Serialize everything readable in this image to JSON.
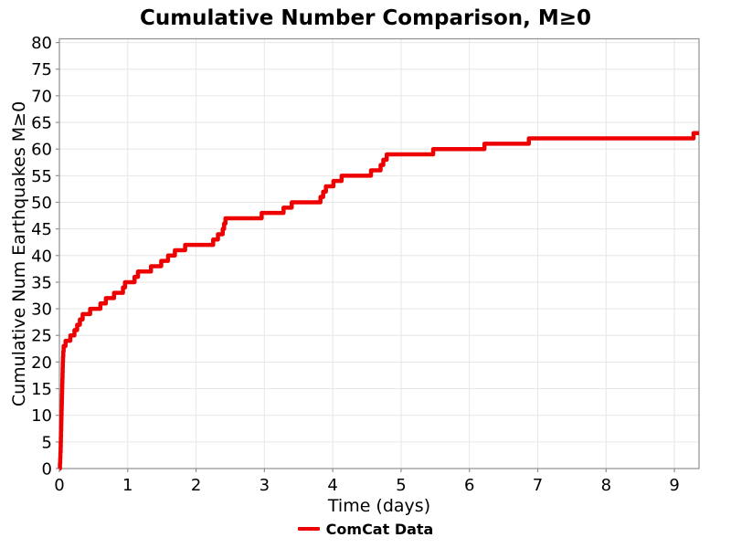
{
  "title": "Cumulative Number Comparison, M≥0",
  "chart_data": {
    "type": "line",
    "subtype": "cumulative-step",
    "title": "Cumulative Number Comparison, M≥0",
    "xlabel": "Time (days)",
    "ylabel": "Cumulative Num Earthquakes M≥0",
    "xlim": [
      0,
      9.36
    ],
    "ylim": [
      0,
      80.7
    ],
    "xticks": [
      0,
      1,
      2,
      3,
      4,
      5,
      6,
      7,
      8,
      9
    ],
    "yticks": [
      0,
      5,
      10,
      15,
      20,
      25,
      30,
      35,
      40,
      45,
      50,
      55,
      60,
      65,
      70,
      75,
      80
    ],
    "grid": true,
    "grid_color": "#e6e6e6",
    "spine_color": "#8f8f8f",
    "legend": {
      "position": "bottom-center",
      "entries": [
        {
          "label": "ComCat Data",
          "color": "#ee0000"
        }
      ]
    },
    "series": [
      {
        "name": "ComCat Data",
        "color": "#ee0000",
        "line_width": 4.5,
        "start_time": 0.005,
        "end_time": 9.36,
        "steps": [
          [
            0.008,
            1
          ],
          [
            0.012,
            2
          ],
          [
            0.015,
            3
          ],
          [
            0.018,
            4
          ],
          [
            0.02,
            5
          ],
          [
            0.022,
            6
          ],
          [
            0.024,
            7
          ],
          [
            0.026,
            8
          ],
          [
            0.028,
            9
          ],
          [
            0.03,
            10
          ],
          [
            0.032,
            11
          ],
          [
            0.034,
            12
          ],
          [
            0.036,
            13
          ],
          [
            0.038,
            14
          ],
          [
            0.04,
            15
          ],
          [
            0.042,
            16
          ],
          [
            0.044,
            17
          ],
          [
            0.046,
            18
          ],
          [
            0.048,
            19
          ],
          [
            0.05,
            20
          ],
          [
            0.053,
            21
          ],
          [
            0.057,
            22
          ],
          [
            0.062,
            23
          ],
          [
            0.09,
            24
          ],
          [
            0.16,
            25
          ],
          [
            0.22,
            26
          ],
          [
            0.26,
            27
          ],
          [
            0.3,
            28
          ],
          [
            0.34,
            29
          ],
          [
            0.45,
            30
          ],
          [
            0.6,
            31
          ],
          [
            0.68,
            32
          ],
          [
            0.8,
            33
          ],
          [
            0.93,
            34
          ],
          [
            0.96,
            35
          ],
          [
            1.1,
            36
          ],
          [
            1.15,
            37
          ],
          [
            1.34,
            38
          ],
          [
            1.49,
            39
          ],
          [
            1.59,
            40
          ],
          [
            1.69,
            41
          ],
          [
            1.84,
            42
          ],
          [
            2.25,
            43
          ],
          [
            2.32,
            44
          ],
          [
            2.39,
            45
          ],
          [
            2.41,
            46
          ],
          [
            2.43,
            47
          ],
          [
            2.96,
            48
          ],
          [
            3.28,
            49
          ],
          [
            3.4,
            50
          ],
          [
            3.82,
            51
          ],
          [
            3.86,
            52
          ],
          [
            3.9,
            53
          ],
          [
            4.01,
            54
          ],
          [
            4.13,
            55
          ],
          [
            4.56,
            56
          ],
          [
            4.7,
            57
          ],
          [
            4.74,
            58
          ],
          [
            4.79,
            59
          ],
          [
            5.47,
            60
          ],
          [
            6.22,
            61
          ],
          [
            6.87,
            62
          ],
          [
            9.28,
            63
          ]
        ]
      }
    ]
  }
}
